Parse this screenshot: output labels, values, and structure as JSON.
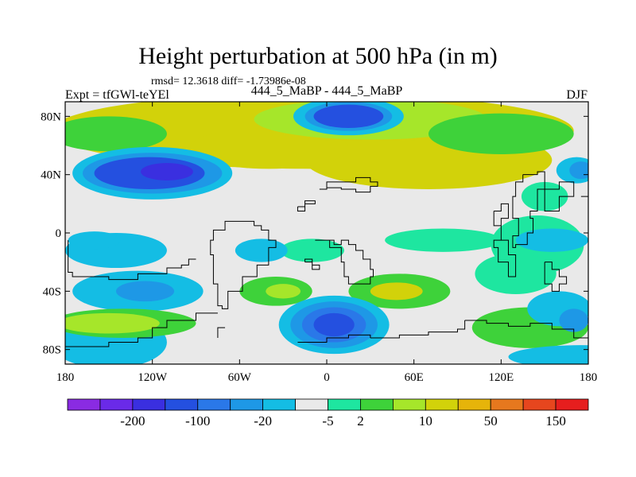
{
  "chart_data": {
    "type": "contour-map",
    "title": "Height perturbation at 500 hPa (in m)",
    "stats_line": "rmsd= 12.3618 diff= -1.73986e-08",
    "experiment_label": "Expt = tfGWl-teYEl",
    "comparison_label": "444_5_MaBP - 444_5_MaBP",
    "season": "DJF",
    "x_ticks": [
      {
        "lon": -180,
        "label": "180"
      },
      {
        "lon": -120,
        "label": "120W"
      },
      {
        "lon": -60,
        "label": "60W"
      },
      {
        "lon": 0,
        "label": "0"
      },
      {
        "lon": 60,
        "label": "60E"
      },
      {
        "lon": 120,
        "label": "120E"
      },
      {
        "lon": 180,
        "label": "180"
      }
    ],
    "y_ticks": [
      {
        "lat": 80,
        "label": "80N"
      },
      {
        "lat": 40,
        "label": "40N"
      },
      {
        "lat": 0,
        "label": "0"
      },
      {
        "lat": -40,
        "label": "40S"
      },
      {
        "lat": -80,
        "label": "80S"
      }
    ],
    "xlim": [
      -180,
      180
    ],
    "ylim": [
      -90,
      90
    ],
    "colorbar": {
      "colors": [
        "#8a2be2",
        "#6a2ae8",
        "#3a2fe0",
        "#2450e0",
        "#2a78e8",
        "#1e98e6",
        "#14bde4",
        "#e9e9e9",
        "#1ee6a0",
        "#3ed23a",
        "#a6e62a",
        "#d2d20a",
        "#e6b40a",
        "#e6781e",
        "#e6461e",
        "#e61e1e"
      ],
      "labels": [
        {
          "after_bin": 1,
          "text": "-200"
        },
        {
          "after_bin": 3,
          "text": "-100"
        },
        {
          "after_bin": 5,
          "text": "-20"
        },
        {
          "after_bin": 7,
          "text": "-5"
        },
        {
          "after_bin": 8,
          "text": "2"
        },
        {
          "after_bin": 10,
          "text": "10"
        },
        {
          "after_bin": 12,
          "text": "50"
        },
        {
          "after_bin": 14,
          "text": "150"
        }
      ]
    },
    "field_blobs": [
      {
        "lon": -10,
        "lat": 70,
        "rlon": 180,
        "rlat": 26,
        "level": 11
      },
      {
        "lon": 70,
        "lat": 50,
        "rlon": 85,
        "rlat": 20,
        "level": 11
      },
      {
        "lon": -40,
        "lat": 58,
        "rlon": 55,
        "rlat": 14,
        "level": 11
      },
      {
        "lon": 30,
        "lat": 78,
        "rlon": 80,
        "rlat": 14,
        "level": 10
      },
      {
        "lon": 120,
        "lat": 68,
        "rlon": 50,
        "rlat": 14,
        "level": 9
      },
      {
        "lon": -150,
        "lat": 68,
        "rlon": 40,
        "rlat": 12,
        "level": 9
      },
      {
        "lon": 15,
        "lat": 80,
        "rlon": 38,
        "rlat": 13,
        "level": 6
      },
      {
        "lon": 15,
        "lat": 80,
        "rlon": 30,
        "rlat": 10,
        "level": 5
      },
      {
        "lon": 15,
        "lat": 80,
        "rlon": 24,
        "rlat": 8,
        "level": 3
      },
      {
        "lon": -120,
        "lat": 41,
        "rlon": 55,
        "rlat": 18,
        "level": 6
      },
      {
        "lon": -120,
        "lat": 41,
        "rlon": 48,
        "rlat": 14,
        "level": 5
      },
      {
        "lon": -122,
        "lat": 41,
        "rlon": 38,
        "rlat": 11,
        "level": 3
      },
      {
        "lon": -110,
        "lat": 42,
        "rlon": 18,
        "rlat": 6,
        "level": 2
      },
      {
        "lon": 172,
        "lat": 43,
        "rlon": 14,
        "rlat": 9,
        "level": 6
      },
      {
        "lon": 175,
        "lat": 43,
        "rlon": 8,
        "rlat": 6,
        "level": 5
      },
      {
        "lon": 150,
        "lat": 25,
        "rlon": 16,
        "rlat": 10,
        "level": 8
      },
      {
        "lon": 145,
        "lat": -8,
        "rlon": 32,
        "rlat": 20,
        "level": 8
      },
      {
        "lon": 155,
        "lat": -5,
        "rlon": 25,
        "rlat": 8,
        "level": 6
      },
      {
        "lon": 130,
        "lat": -28,
        "rlon": 28,
        "rlat": 14,
        "level": 8
      },
      {
        "lon": 80,
        "lat": -5,
        "rlon": 40,
        "rlat": 8,
        "level": 8
      },
      {
        "lon": -10,
        "lat": -12,
        "rlon": 22,
        "rlat": 8,
        "level": 8
      },
      {
        "lon": -45,
        "lat": -12,
        "rlon": 18,
        "rlat": 8,
        "level": 6
      },
      {
        "lon": -145,
        "lat": -12,
        "rlon": 35,
        "rlat": 12,
        "level": 6
      },
      {
        "lon": -160,
        "lat": -5,
        "rlon": 18,
        "rlat": 6,
        "level": 6
      },
      {
        "lon": -130,
        "lat": -40,
        "rlon": 45,
        "rlat": 14,
        "level": 6
      },
      {
        "lon": -125,
        "lat": -40,
        "rlon": 20,
        "rlat": 7,
        "level": 5
      },
      {
        "lon": -150,
        "lat": -75,
        "rlon": 40,
        "rlat": 18,
        "level": 6
      },
      {
        "lon": -140,
        "lat": -62,
        "rlon": 50,
        "rlat": 10,
        "level": 9
      },
      {
        "lon": -150,
        "lat": -62,
        "rlon": 35,
        "rlat": 7,
        "level": 10
      },
      {
        "lon": 50,
        "lat": -40,
        "rlon": 35,
        "rlat": 12,
        "level": 9
      },
      {
        "lon": 48,
        "lat": -40,
        "rlon": 18,
        "rlat": 6,
        "level": 11
      },
      {
        "lon": -35,
        "lat": -40,
        "rlon": 25,
        "rlat": 10,
        "level": 9
      },
      {
        "lon": -30,
        "lat": -40,
        "rlon": 12,
        "rlat": 5,
        "level": 10
      },
      {
        "lon": 5,
        "lat": -63,
        "rlon": 38,
        "rlat": 20,
        "level": 6
      },
      {
        "lon": 5,
        "lat": -63,
        "rlon": 30,
        "rlat": 16,
        "level": 5
      },
      {
        "lon": 5,
        "lat": -63,
        "rlon": 22,
        "rlat": 12,
        "level": 4
      },
      {
        "lon": 5,
        "lat": -63,
        "rlon": 14,
        "rlat": 8,
        "level": 3
      },
      {
        "lon": 140,
        "lat": -65,
        "rlon": 40,
        "rlat": 14,
        "level": 9
      },
      {
        "lon": 160,
        "lat": -52,
        "rlon": 22,
        "rlat": 12,
        "level": 6
      },
      {
        "lon": 170,
        "lat": -60,
        "rlon": 10,
        "rlat": 8,
        "level": 5
      },
      {
        "lon": 175,
        "lat": -85,
        "rlon": 50,
        "rlat": 8,
        "level": 6
      }
    ],
    "land_outlines": [
      [
        [
          -5,
          30
        ],
        [
          0,
          35
        ],
        [
          10,
          35
        ],
        [
          20,
          38
        ],
        [
          30,
          35
        ],
        [
          35,
          32
        ],
        [
          30,
          28
        ],
        [
          20,
          30
        ],
        [
          10,
          31
        ],
        [
          0,
          30
        ],
        [
          -5,
          30
        ]
      ],
      [
        [
          -20,
          18
        ],
        [
          -15,
          22
        ],
        [
          -8,
          20
        ],
        [
          -15,
          15
        ],
        [
          -20,
          18
        ]
      ],
      [
        [
          -50,
          5
        ],
        [
          -45,
          2
        ],
        [
          -40,
          -5
        ],
        [
          -35,
          -10
        ],
        [
          -40,
          -22
        ],
        [
          -48,
          -30
        ],
        [
          -58,
          -40
        ],
        [
          -68,
          -52
        ],
        [
          -72,
          -50
        ],
        [
          -75,
          -35
        ],
        [
          -78,
          -15
        ],
        [
          -80,
          -5
        ],
        [
          -78,
          2
        ],
        [
          -70,
          8
        ],
        [
          -60,
          8
        ],
        [
          -50,
          5
        ]
      ],
      [
        [
          -90,
          -18
        ],
        [
          -95,
          -22
        ],
        [
          -100,
          -24
        ],
        [
          -110,
          -28
        ],
        [
          -130,
          -32
        ],
        [
          -150,
          -30
        ],
        [
          -175,
          -27
        ],
        [
          -178,
          -18
        ],
        [
          -178,
          -5
        ]
      ],
      [
        [
          -75,
          -55
        ],
        [
          -90,
          -60
        ],
        [
          -110,
          -65
        ],
        [
          -120,
          -72
        ],
        [
          -130,
          -75
        ],
        [
          -150,
          -78
        ],
        [
          -180,
          -78
        ]
      ],
      [
        [
          -70,
          -65
        ],
        [
          -75,
          -72
        ]
      ],
      [
        [
          -8,
          -5
        ],
        [
          -2,
          -5
        ],
        [
          5,
          -8
        ],
        [
          10,
          -5
        ],
        [
          15,
          -8
        ],
        [
          20,
          -12
        ],
        [
          25,
          -18
        ],
        [
          30,
          -25
        ],
        [
          32,
          -30
        ],
        [
          30,
          -35
        ],
        [
          20,
          -35
        ],
        [
          15,
          -30
        ],
        [
          12,
          -20
        ],
        [
          10,
          -10
        ],
        [
          2,
          -5
        ],
        [
          -8,
          -5
        ]
      ],
      [
        [
          -15,
          -20
        ],
        [
          -10,
          -25
        ],
        [
          -5,
          -22
        ],
        [
          -10,
          -18
        ],
        [
          -15,
          -20
        ]
      ],
      [
        [
          95,
          -60
        ],
        [
          110,
          -62
        ],
        [
          125,
          -64
        ],
        [
          140,
          -62
        ],
        [
          155,
          -66
        ],
        [
          170,
          -72
        ],
        [
          180,
          -75
        ]
      ],
      [
        [
          30,
          -72
        ],
        [
          50,
          -70
        ],
        [
          70,
          -68
        ],
        [
          90,
          -66
        ],
        [
          95,
          -60
        ]
      ],
      [
        [
          -20,
          -75
        ],
        [
          0,
          -72
        ],
        [
          15,
          -70
        ],
        [
          30,
          -72
        ]
      ],
      [
        [
          115,
          15
        ],
        [
          120,
          20
        ],
        [
          125,
          10
        ],
        [
          120,
          -5
        ],
        [
          115,
          -10
        ],
        [
          118,
          -20
        ],
        [
          125,
          -30
        ],
        [
          130,
          -25
        ],
        [
          130,
          -15
        ],
        [
          125,
          -5
        ],
        [
          120,
          5
        ],
        [
          115,
          15
        ]
      ],
      [
        [
          135,
          40
        ],
        [
          145,
          42
        ],
        [
          150,
          30
        ],
        [
          145,
          15
        ],
        [
          140,
          10
        ],
        [
          142,
          0
        ],
        [
          138,
          -8
        ],
        [
          130,
          -10
        ],
        [
          128,
          -2
        ],
        [
          132,
          10
        ],
        [
          128,
          25
        ],
        [
          130,
          35
        ],
        [
          135,
          40
        ]
      ],
      [
        [
          150,
          30
        ],
        [
          160,
          35
        ],
        [
          170,
          25
        ],
        [
          160,
          15
        ],
        [
          150,
          30
        ]
      ],
      [
        [
          175,
          25
        ],
        [
          180,
          30
        ]
      ],
      [
        [
          150,
          -20
        ],
        [
          155,
          -25
        ],
        [
          160,
          -30
        ],
        [
          165,
          -35
        ],
        [
          160,
          -40
        ],
        [
          155,
          -35
        ],
        [
          150,
          -25
        ],
        [
          150,
          -20
        ]
      ]
    ]
  }
}
